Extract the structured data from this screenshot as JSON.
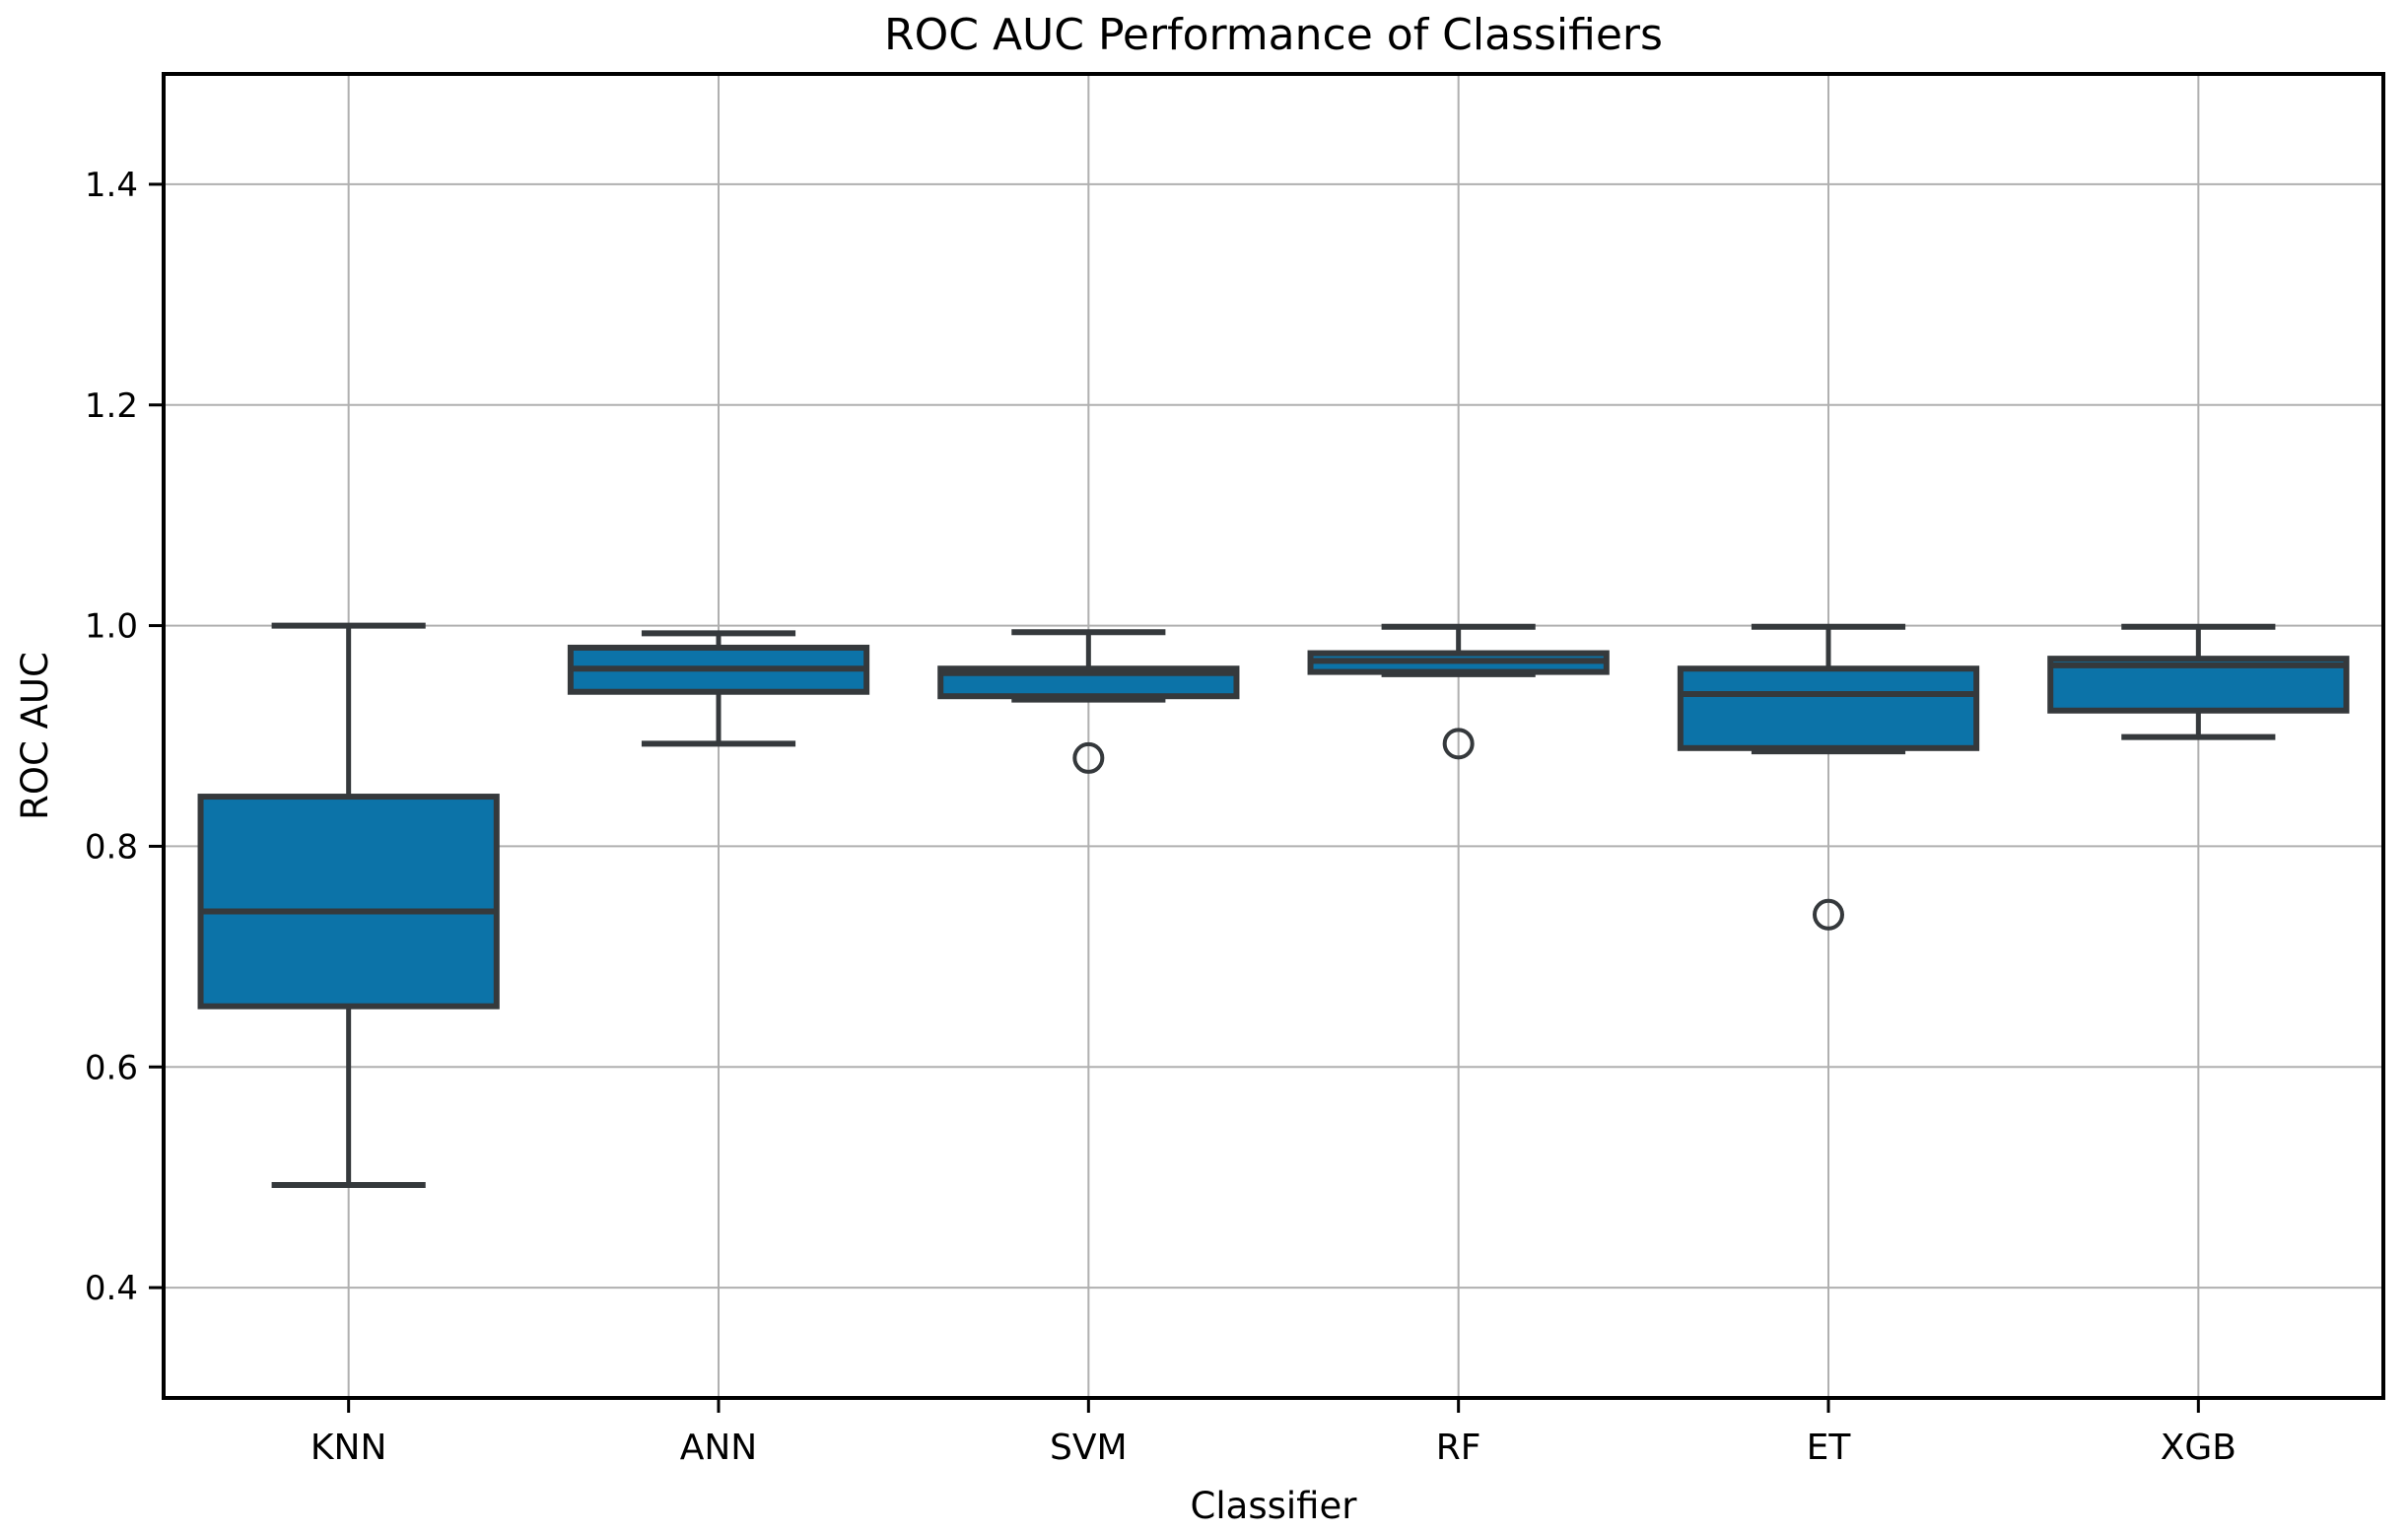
{
  "figure": {
    "kind": "matplotlib-boxplot-figure",
    "background": "#ffffff"
  },
  "chart_data": {
    "type": "boxplot",
    "title": "ROC AUC Performance of Classifiers",
    "xlabel": "Classifier",
    "ylabel": "ROC AUC",
    "categories": [
      "KNN",
      "ANN",
      "SVM",
      "RF",
      "ET",
      "XGB"
    ],
    "ylim": [
      0.3,
      1.5
    ],
    "yticks": [
      0.4,
      0.6,
      0.8,
      1.0,
      1.2,
      1.4
    ],
    "ytick_labels": [
      "0.4",
      "0.6",
      "0.8",
      "1.0",
      "1.2",
      "1.4"
    ],
    "grid": true,
    "legend": false,
    "boxes": [
      {
        "label": "KNN",
        "whislo": 0.493,
        "q1": 0.655,
        "med": 0.741,
        "q3": 0.845,
        "whishi": 1.0,
        "fliers": []
      },
      {
        "label": "ANN",
        "whislo": 0.893,
        "q1": 0.94,
        "med": 0.961,
        "q3": 0.98,
        "whishi": 0.993,
        "fliers": []
      },
      {
        "label": "SVM",
        "whislo": 0.933,
        "q1": 0.936,
        "med": 0.957,
        "q3": 0.961,
        "whishi": 0.994,
        "fliers": [
          0.88
        ]
      },
      {
        "label": "RF",
        "whislo": 0.956,
        "q1": 0.958,
        "med": 0.968,
        "q3": 0.975,
        "whishi": 0.999,
        "fliers": [
          0.893
        ]
      },
      {
        "label": "ET",
        "whislo": 0.886,
        "q1": 0.889,
        "med": 0.938,
        "q3": 0.961,
        "whishi": 0.999,
        "fliers": [
          0.738
        ]
      },
      {
        "label": "XGB",
        "whislo": 0.899,
        "q1": 0.923,
        "med": 0.964,
        "q3": 0.97,
        "whishi": 0.999,
        "fliers": []
      }
    ],
    "style": {
      "box_fill": "#0c73a8",
      "line_color": "#35393c",
      "grid_color": "#b0b0b0",
      "spine_color": "#000000",
      "text_color": "#000000"
    }
  }
}
